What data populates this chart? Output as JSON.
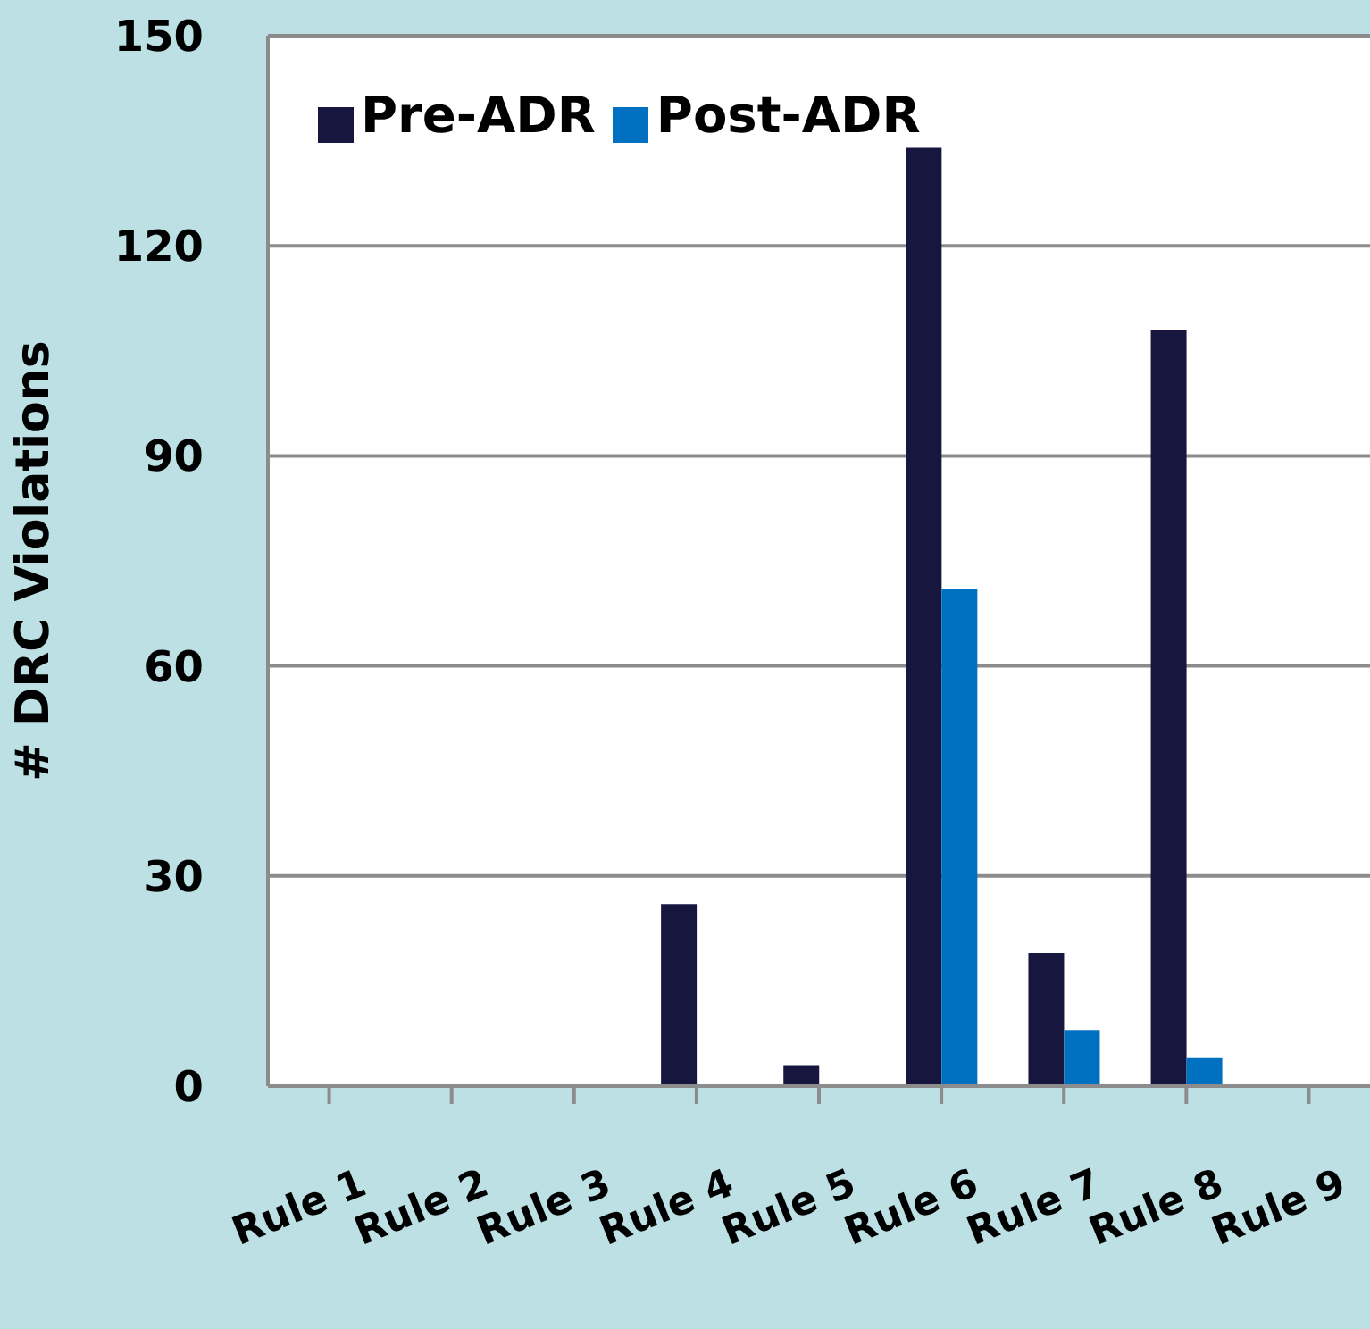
{
  "chart_data": {
    "type": "bar",
    "ylabel": "# DRC Violations",
    "categories": [
      "Rule 1",
      "Rule 2",
      "Rule 3",
      "Rule 4",
      "Rule 5",
      "Rule 6",
      "Rule 7",
      "Rule 8",
      "Rule 9"
    ],
    "series": [
      {
        "name": "Pre-ADR",
        "color": "#16163f",
        "values": [
          0,
          0,
          0,
          26,
          3,
          134,
          19,
          108,
          0
        ]
      },
      {
        "name": "Post-ADR",
        "color": "#0070c0",
        "values": [
          0,
          0,
          0,
          0,
          0,
          71,
          8,
          4,
          0
        ]
      }
    ],
    "ylim": [
      0,
      150
    ],
    "yticks": [
      0,
      30,
      60,
      90,
      120,
      150
    ],
    "grid": "y",
    "legend": "top left"
  }
}
